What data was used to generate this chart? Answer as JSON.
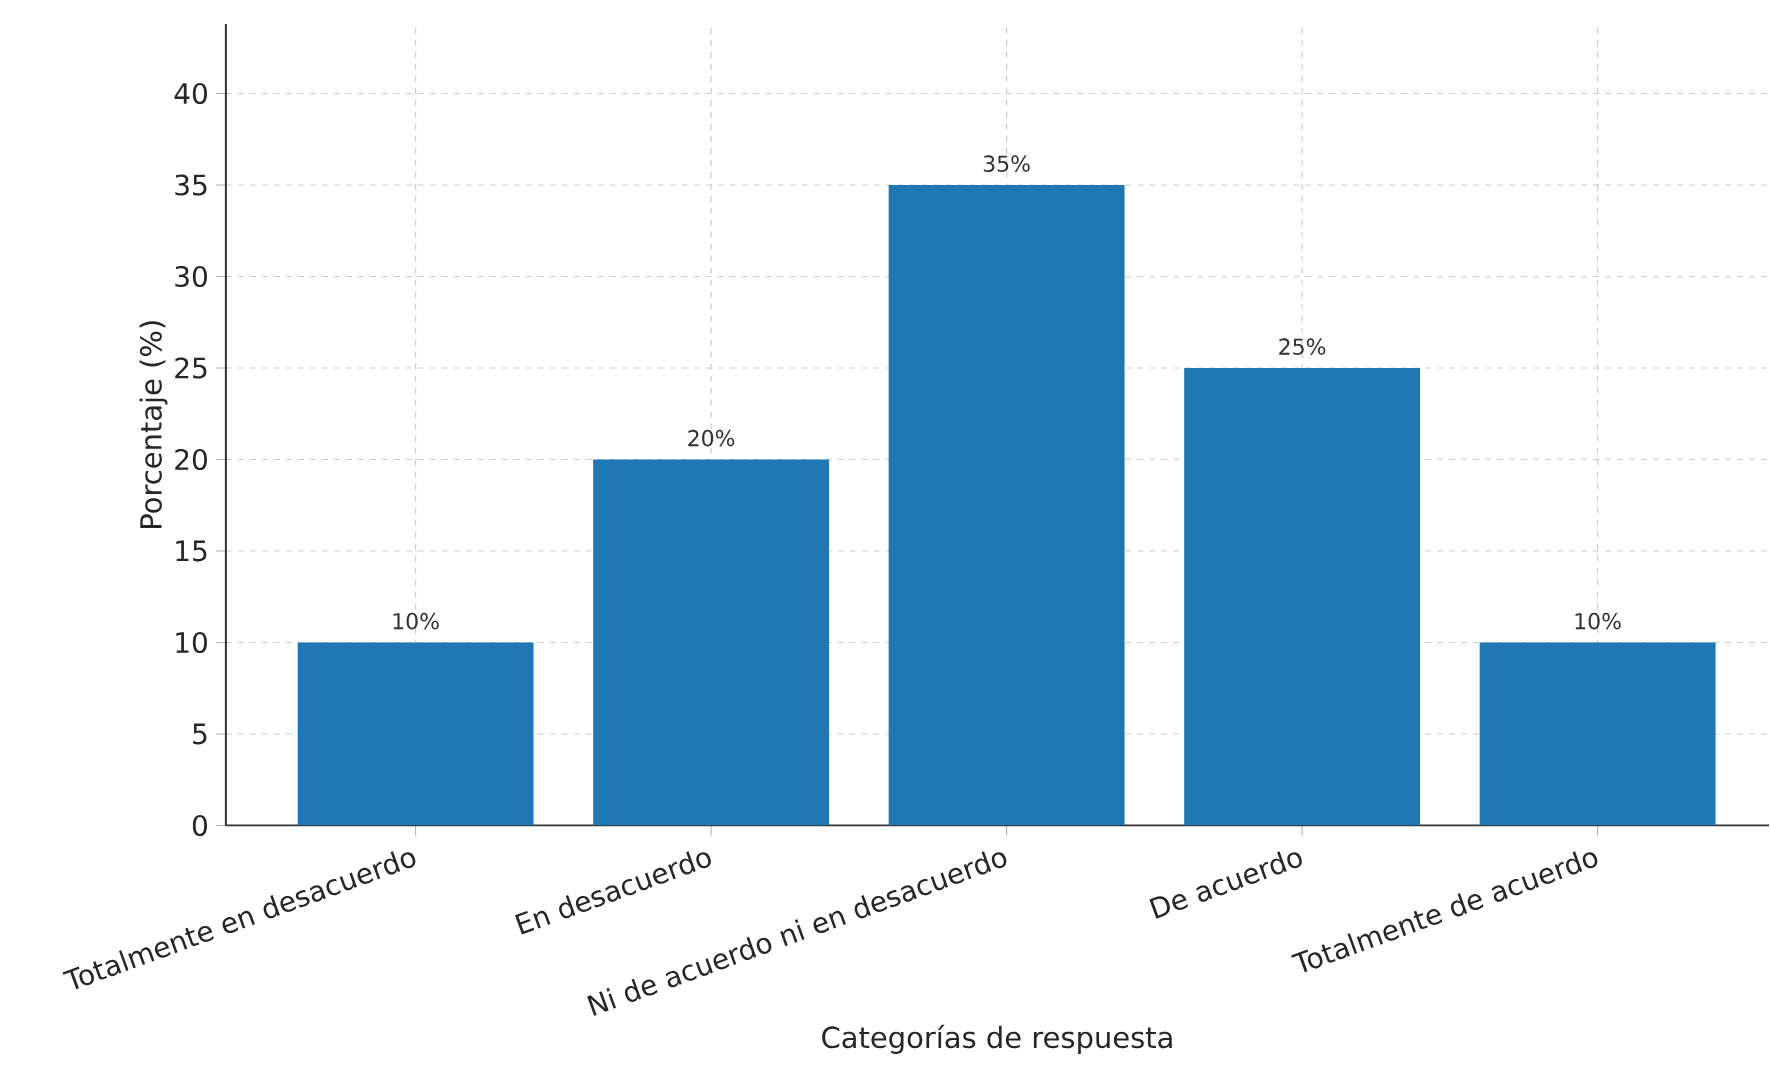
{
  "chart_data": {
    "type": "bar",
    "xlabel": "Categorías de respuesta",
    "ylabel": "Porcentaje (%)",
    "categories": [
      "Totalmente en desacuerdo",
      "En desacuerdo",
      "Ni de acuerdo ni en desacuerdo",
      "De acuerdo",
      "Totalmente de acuerdo"
    ],
    "values": [
      10,
      20,
      35,
      25,
      10
    ],
    "value_labels": [
      "10%",
      "20%",
      "35%",
      "25%",
      "10%"
    ],
    "color": "#1f77b4",
    "ylim": [
      0,
      43.8
    ],
    "yticks": [
      0,
      5,
      10,
      15,
      20,
      25,
      30,
      35,
      40
    ],
    "grid": true
  }
}
